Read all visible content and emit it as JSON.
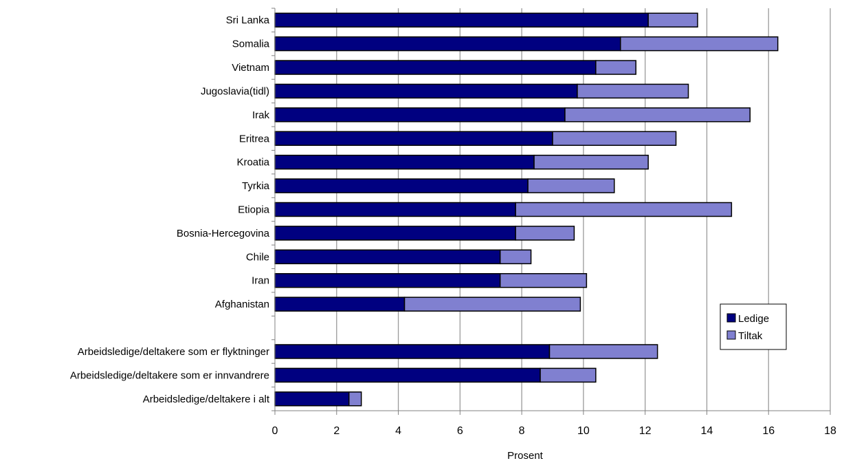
{
  "chart_data": {
    "type": "bar",
    "orientation": "horizontal",
    "stacked": true,
    "categories": [
      "Sri Lanka",
      "Somalia",
      "Vietnam",
      "Jugoslavia(tidl)",
      "Irak",
      "Eritrea",
      "Kroatia",
      "Tyrkia",
      "Etiopia",
      "Bosnia-Hercegovina",
      "Chile",
      "Iran",
      "Afghanistan",
      "",
      "Arbeidsledige/deltakere som er flyktninger",
      "Arbeidsledige/deltakere som er innvandrere",
      "Arbeidsledige/deltakere i alt"
    ],
    "series": [
      {
        "name": "Ledige",
        "color": "#000080",
        "values": [
          12.1,
          11.2,
          10.4,
          9.8,
          9.4,
          9.0,
          8.4,
          8.2,
          7.8,
          7.8,
          7.3,
          7.3,
          4.2,
          null,
          8.9,
          8.6,
          2.4
        ]
      },
      {
        "name": "Tiltak",
        "color": "#8080d0",
        "values": [
          1.6,
          5.1,
          1.3,
          3.6,
          6.0,
          4.0,
          3.7,
          2.8,
          7.0,
          1.9,
          1.0,
          2.8,
          5.7,
          null,
          3.5,
          1.8,
          0.4
        ]
      }
    ],
    "xlabel": "Prosent",
    "xlim": [
      0,
      18
    ],
    "xticks": [
      0,
      2,
      4,
      6,
      8,
      10,
      12,
      14,
      16,
      18
    ],
    "grid": "vertical",
    "legend": "right"
  }
}
